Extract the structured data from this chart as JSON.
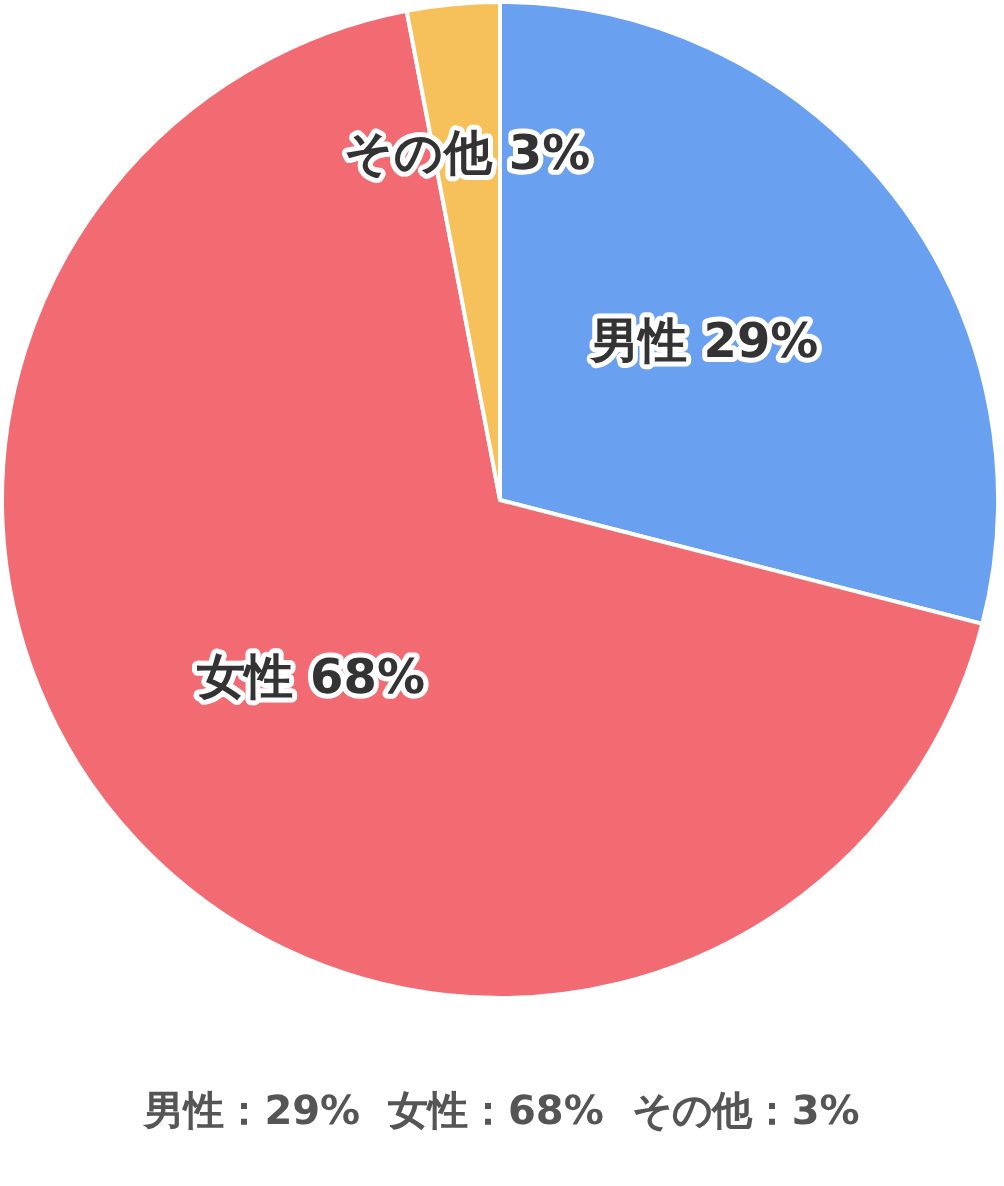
{
  "chart_data": {
    "type": "pie",
    "categories": [
      "男性",
      "女性",
      "その他"
    ],
    "values": [
      29,
      68,
      3
    ],
    "value_labels": [
      "29%",
      "68%",
      "3%"
    ],
    "colors": [
      "#6aa0f0",
      "#f26b72",
      "#f6c15a"
    ],
    "annotations": [
      "男性：29%  女性：68%  その他：3%"
    ]
  }
}
